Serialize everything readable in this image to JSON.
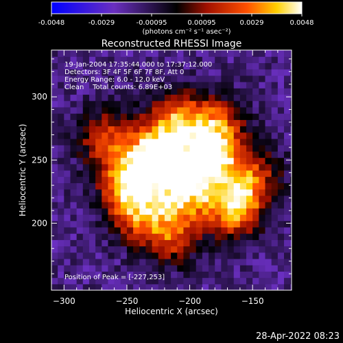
{
  "colorbar": {
    "tick_labels": [
      "-0.0048",
      "-0.0029",
      "-0.00095",
      "0.00095",
      "0.0029",
      "0.0048"
    ],
    "unit_label": "(photons cm⁻² s⁻¹ asec⁻²)",
    "range": [
      -0.0048,
      0.0048
    ]
  },
  "plot": {
    "title": "Reconstructed RHESSI Image",
    "info_lines": [
      "19-Jan-2004 17:35:44.000 to 17:37:12.000",
      "Detectors: 3F 4F 5F 6F 7F 8F, Att 0",
      "Energy Range: 6.0 - 12.0 keV",
      "Clean    Total counts: 6.89E+03"
    ],
    "peak_label": "Position of Peak = [-227,253]"
  },
  "footer": {
    "date": "28-Apr-2022 08:23"
  },
  "chart_data": {
    "type": "heatmap",
    "title": "Reconstructed RHESSI Image",
    "xlabel": "Heliocentric X (arcsec)",
    "ylabel": "Heliocentric Y (arcsec)",
    "xlim": [
      -310,
      -119
    ],
    "ylim": [
      147,
      337
    ],
    "x_ticks": [
      -300,
      -250,
      -200,
      -150
    ],
    "y_ticks": [
      200,
      250,
      300
    ],
    "x_tick_labels": [
      "−300",
      "−250",
      "−200",
      "−150"
    ],
    "y_tick_labels": [
      "200",
      "250",
      "300"
    ],
    "peak": [
      -227,
      253
    ],
    "value_range": [
      -0.0048,
      0.0048
    ],
    "colormap": [
      "#0000ff",
      "#6a2fc0",
      "#000000",
      "#a01000",
      "#ff5000",
      "#ffd000",
      "#ffffff"
    ],
    "sources": [
      {
        "x": -227,
        "y": 253,
        "peak": 0.0048
      },
      {
        "x": -185,
        "y": 250,
        "peak": 0.0036
      },
      {
        "x": -165,
        "y": 213,
        "peak": 0.0037
      },
      {
        "x": -250,
        "y": 232,
        "peak": 0.0028
      },
      {
        "x": -205,
        "y": 225,
        "peak": 0.003
      },
      {
        "x": -210,
        "y": 282,
        "peak": 0.0024
      },
      {
        "x": -178,
        "y": 277,
        "peak": 0.0022
      },
      {
        "x": -267,
        "y": 268,
        "peak": 0.0016
      },
      {
        "x": -240,
        "y": 208,
        "peak": 0.002
      },
      {
        "x": -215,
        "y": 190,
        "peak": 0.0016
      },
      {
        "x": -150,
        "y": 238,
        "peak": 0.0014
      }
    ]
  }
}
